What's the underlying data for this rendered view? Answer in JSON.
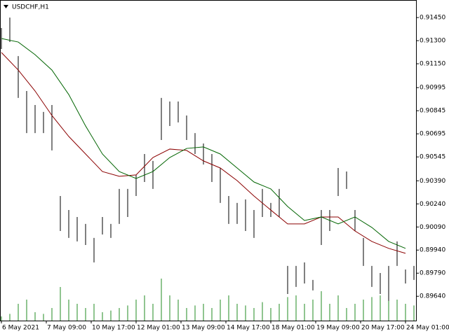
{
  "chart_data": {
    "type": "ohlc",
    "title": "USDCHF,H1",
    "bar_color": "#000000",
    "x": [
      0,
      6,
      12,
      18,
      24,
      30,
      36,
      42,
      48,
      54,
      60,
      66,
      72,
      78,
      84,
      90,
      96,
      102,
      108,
      114,
      120,
      126,
      132,
      138,
      144,
      150,
      156,
      162,
      168,
      174,
      180,
      186,
      192,
      198,
      204,
      210,
      216,
      222,
      228,
      234,
      240,
      246,
      252,
      258,
      264,
      270,
      276,
      282,
      288,
      294
    ],
    "high": [
      0.91382,
      0.9145,
      0.912,
      0.90973,
      0.90882,
      0.90837,
      0.90882,
      0.90291,
      0.902,
      0.90155,
      0.9011,
      0.90019,
      0.90155,
      0.9011,
      0.90337,
      0.90337,
      0.90428,
      0.90564,
      0.90519,
      0.90928,
      0.90905,
      0.90905,
      0.90814,
      0.907,
      0.90632,
      0.90564,
      0.90473,
      0.90291,
      0.90246,
      0.90269,
      0.902,
      0.90337,
      0.90246,
      0.90337,
      0.89837,
      0.89837,
      0.8986,
      0.89746,
      0.902,
      0.902,
      0.90473,
      0.9045,
      0.902,
      0.90019,
      0.89837,
      0.89791,
      0.89837,
      0.89996,
      0.89814,
      0.89837
    ],
    "low": [
      0.91246,
      0.91291,
      0.90928,
      0.907,
      0.907,
      0.907,
      0.90587,
      0.90064,
      0.90019,
      0.89996,
      0.89973,
      0.8986,
      0.90041,
      0.90019,
      0.9011,
      0.90155,
      0.90291,
      0.90382,
      0.90337,
      0.90655,
      0.90746,
      0.90769,
      0.90655,
      0.90564,
      0.90496,
      0.90382,
      0.90246,
      0.9011,
      0.9011,
      0.90064,
      0.90019,
      0.90155,
      0.90155,
      0.90155,
      0.89655,
      0.89701,
      0.89723,
      0.89678,
      0.89973,
      0.90064,
      0.90291,
      0.90337,
      0.90064,
      0.89837,
      0.89701,
      0.89655,
      0.8961,
      0.89837,
      0.89723,
      0.89746
    ],
    "ma_x": [
      0,
      12,
      24,
      36,
      48,
      60,
      72,
      84,
      96,
      108,
      120,
      132,
      144,
      156,
      168,
      180,
      192,
      204,
      216,
      228,
      240,
      252,
      264,
      276,
      288
    ],
    "ma": [
      {
        "color": "#8b0000",
        "values": [
          0.91223,
          0.91109,
          0.90973,
          0.90814,
          0.90678,
          0.90564,
          0.9045,
          0.90419,
          0.90428,
          0.90541,
          0.90596,
          0.90587,
          0.90519,
          0.90473,
          0.90391,
          0.90291,
          0.902,
          0.9011,
          0.9011,
          0.90155,
          0.90155,
          0.90064,
          0.89996,
          0.89951,
          0.89919
        ]
      },
      {
        "color": "#006400",
        "values": [
          0.91314,
          0.91291,
          0.91209,
          0.91109,
          0.9095,
          0.90746,
          0.90564,
          0.9045,
          0.90405,
          0.9045,
          0.90541,
          0.906,
          0.9061,
          0.90564,
          0.90473,
          0.90382,
          0.90337,
          0.90223,
          0.90132,
          0.90155,
          0.9011,
          0.90155,
          0.90087,
          0.89996,
          0.89951
        ]
      }
    ],
    "volume": {
      "color": "#228b22",
      "values": [
        5,
        8,
        20,
        25,
        10,
        8,
        15,
        40,
        25,
        20,
        15,
        20,
        10,
        12,
        15,
        18,
        25,
        30,
        20,
        50,
        30,
        25,
        15,
        18,
        20,
        15,
        25,
        30,
        20,
        18,
        15,
        22,
        15,
        20,
        28,
        30,
        20,
        25,
        35,
        20,
        30,
        15,
        20,
        25,
        28,
        30,
        35,
        25,
        20,
        18
      ]
    },
    "xlim": [
      -1,
      295.5
    ],
    "ylim": [
      0.89482,
      0.91564
    ],
    "yticks": [
      {
        "value": 0.9145,
        "label": "0.91450"
      },
      {
        "value": 0.913,
        "label": "0.91300"
      },
      {
        "value": 0.9115,
        "label": "0.91150"
      },
      {
        "value": 0.90995,
        "label": "0.90995"
      },
      {
        "value": 0.90845,
        "label": "0.90845"
      },
      {
        "value": 0.90695,
        "label": "0.90695"
      },
      {
        "value": 0.90545,
        "label": "0.90545"
      },
      {
        "value": 0.9039,
        "label": "0.90390"
      },
      {
        "value": 0.9024,
        "label": "0.90240"
      },
      {
        "value": 0.9009,
        "label": "0.90090"
      },
      {
        "value": 0.8994,
        "label": "0.89940"
      },
      {
        "value": 0.8979,
        "label": "0.89790"
      },
      {
        "value": 0.8964,
        "label": "0.89640"
      }
    ],
    "xticks": [
      {
        "value": 0,
        "label": "6 May 2021"
      },
      {
        "value": 32,
        "label": "7 May 09:00"
      },
      {
        "value": 64,
        "label": "10 May 17:00"
      },
      {
        "value": 96,
        "label": "12 May 01:00"
      },
      {
        "value": 128,
        "label": "13 May 09:00"
      },
      {
        "value": 160,
        "label": "14 May 17:00"
      },
      {
        "value": 192,
        "label": "18 May 01:00"
      },
      {
        "value": 224,
        "label": "19 May 09:00"
      },
      {
        "value": 256,
        "label": "20 May 17:00"
      },
      {
        "value": 288,
        "label": "24 May 01:00"
      }
    ]
  }
}
